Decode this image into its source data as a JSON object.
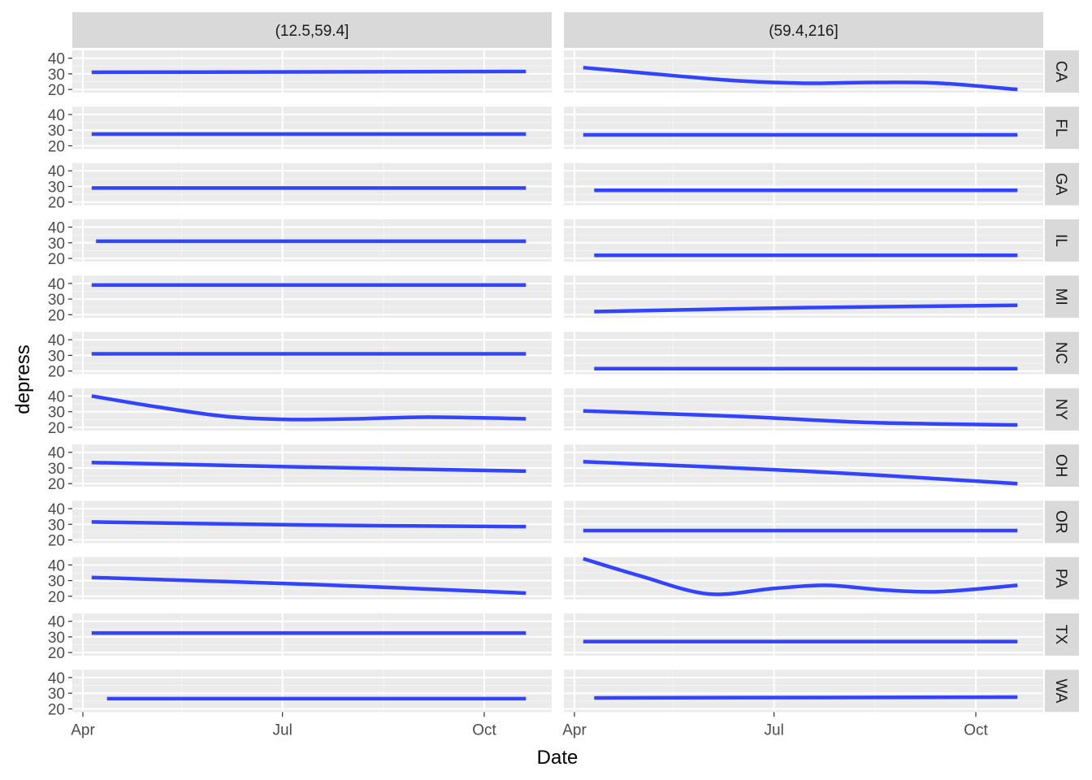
{
  "chart_data": {
    "type": "line",
    "xlabel": "Date",
    "ylabel": "depress",
    "x_ticks": [
      "Apr",
      "Jul",
      "Oct"
    ],
    "y_ticks": [
      20,
      30,
      40
    ],
    "ylim": [
      18,
      45
    ],
    "columns": [
      "(12.5,59.4]",
      "(59.4,216]"
    ],
    "rows": [
      "CA",
      "FL",
      "GA",
      "IL",
      "MI",
      "NC",
      "NY",
      "OH",
      "OR",
      "PA",
      "TX",
      "WA"
    ],
    "line_color": "#3344ff",
    "panel_background": "#ebebeb",
    "strip_background": "#d9d9d9",
    "panels": {
      "CA": [
        [
          [
            "2020-04-05",
            31
          ],
          [
            "2020-10-20",
            31.5
          ]
        ],
        [
          [
            "2020-04-05",
            34
          ],
          [
            "2020-05-15",
            29
          ],
          [
            "2020-06-15",
            25.5
          ],
          [
            "2020-07-15",
            24
          ],
          [
            "2020-08-15",
            24.5
          ],
          [
            "2020-09-15",
            24
          ],
          [
            "2020-10-20",
            20
          ]
        ]
      ],
      "FL": [
        [
          [
            "2020-04-05",
            27.5
          ],
          [
            "2020-10-20",
            27.5
          ]
        ],
        [
          [
            "2020-04-05",
            27
          ],
          [
            "2020-10-20",
            27
          ]
        ]
      ],
      "GA": [
        [
          [
            "2020-04-05",
            29
          ],
          [
            "2020-10-20",
            29
          ]
        ],
        [
          [
            "2020-04-10",
            27.5
          ],
          [
            "2020-10-20",
            27.5
          ]
        ]
      ],
      "IL": [
        [
          [
            "2020-04-07",
            31
          ],
          [
            "2020-10-20",
            31
          ]
        ],
        [
          [
            "2020-04-10",
            22
          ],
          [
            "2020-10-20",
            22
          ]
        ]
      ],
      "MI": [
        [
          [
            "2020-04-05",
            39
          ],
          [
            "2020-10-20",
            39
          ]
        ],
        [
          [
            "2020-04-10",
            22
          ],
          [
            "2020-07-15",
            24.5
          ],
          [
            "2020-10-20",
            26
          ]
        ]
      ],
      "NC": [
        [
          [
            "2020-04-05",
            31
          ],
          [
            "2020-10-20",
            31
          ]
        ],
        [
          [
            "2020-04-10",
            21.5
          ],
          [
            "2020-10-20",
            21.5
          ]
        ]
      ],
      "NY": [
        [
          [
            "2020-04-05",
            40
          ],
          [
            "2020-05-05",
            33
          ],
          [
            "2020-06-05",
            27
          ],
          [
            "2020-07-05",
            25
          ],
          [
            "2020-08-05",
            25.5
          ],
          [
            "2020-09-05",
            26.5
          ],
          [
            "2020-10-20",
            25.5
          ]
        ],
        [
          [
            "2020-04-05",
            30.5
          ],
          [
            "2020-06-15",
            27
          ],
          [
            "2020-08-15",
            23
          ],
          [
            "2020-10-20",
            21.5
          ]
        ]
      ],
      "OH": [
        [
          [
            "2020-04-05",
            33.5
          ],
          [
            "2020-07-15",
            30.5
          ],
          [
            "2020-10-20",
            28
          ]
        ],
        [
          [
            "2020-04-05",
            34
          ],
          [
            "2020-07-15",
            28
          ],
          [
            "2020-10-20",
            20
          ]
        ]
      ],
      "OR": [
        [
          [
            "2020-04-05",
            31.5
          ],
          [
            "2020-07-15",
            29.5
          ],
          [
            "2020-10-20",
            28.5
          ]
        ],
        [
          [
            "2020-04-05",
            26
          ],
          [
            "2020-10-20",
            26
          ]
        ]
      ],
      "PA": [
        [
          [
            "2020-04-05",
            32
          ],
          [
            "2020-07-15",
            27.5
          ],
          [
            "2020-10-20",
            22
          ]
        ],
        [
          [
            "2020-04-05",
            44
          ],
          [
            "2020-05-01",
            33
          ],
          [
            "2020-06-01",
            21.5
          ],
          [
            "2020-07-01",
            25
          ],
          [
            "2020-07-25",
            27
          ],
          [
            "2020-08-20",
            24
          ],
          [
            "2020-09-15",
            23
          ],
          [
            "2020-10-20",
            27
          ]
        ]
      ],
      "TX": [
        [
          [
            "2020-04-05",
            32.5
          ],
          [
            "2020-10-20",
            32.5
          ]
        ],
        [
          [
            "2020-04-05",
            27
          ],
          [
            "2020-10-20",
            27
          ]
        ]
      ],
      "WA": [
        [
          [
            "2020-04-12",
            26.5
          ],
          [
            "2020-10-20",
            26.5
          ]
        ],
        [
          [
            "2020-04-10",
            27
          ],
          [
            "2020-10-20",
            27.5
          ]
        ]
      ]
    }
  }
}
